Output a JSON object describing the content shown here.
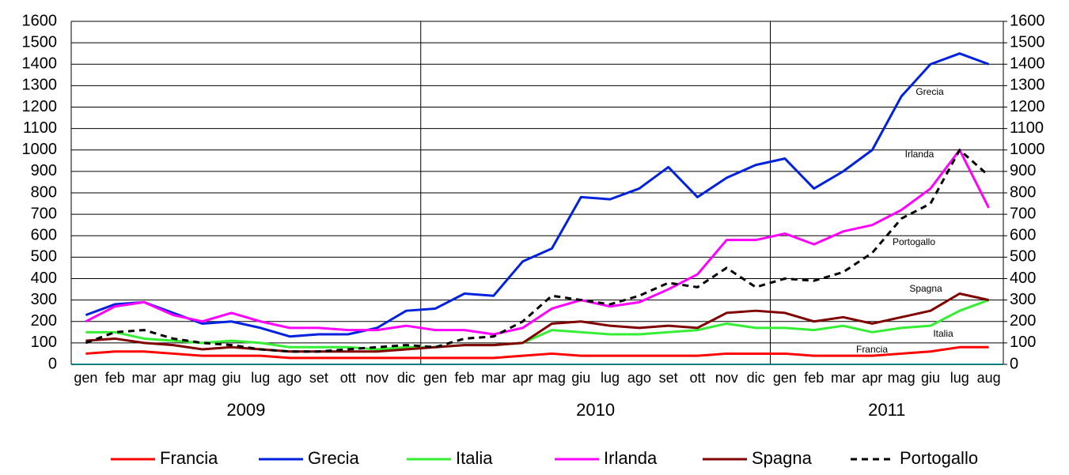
{
  "chart_data": {
    "type": "line",
    "categories": [
      "gen",
      "feb",
      "mar",
      "apr",
      "mag",
      "giu",
      "lug",
      "ago",
      "set",
      "ott",
      "nov",
      "dic",
      "gen",
      "feb",
      "mar",
      "apr",
      "mag",
      "giu",
      "lug",
      "ago",
      "set",
      "ott",
      "nov",
      "dic",
      "gen",
      "feb",
      "mar",
      "apr",
      "mag",
      "giu",
      "lug",
      "aug"
    ],
    "years": [
      "2009",
      "2010",
      "2011"
    ],
    "series": [
      {
        "name": "Francia",
        "color": "#ff0000",
        "values": [
          50,
          60,
          60,
          50,
          40,
          40,
          40,
          30,
          30,
          30,
          30,
          30,
          30,
          30,
          30,
          40,
          50,
          40,
          40,
          40,
          40,
          40,
          50,
          50,
          50,
          40,
          40,
          40,
          50,
          60,
          80,
          80
        ]
      },
      {
        "name": "Grecia",
        "color": "#0022dd",
        "values": [
          230,
          280,
          290,
          240,
          190,
          200,
          170,
          130,
          140,
          140,
          170,
          250,
          260,
          330,
          320,
          480,
          540,
          780,
          770,
          820,
          920,
          780,
          870,
          930,
          960,
          820,
          900,
          1000,
          1250,
          1400,
          1450,
          1400
        ]
      },
      {
        "name": "Italia",
        "color": "#33ee33",
        "values": [
          150,
          150,
          120,
          110,
          100,
          110,
          100,
          80,
          80,
          80,
          70,
          80,
          80,
          90,
          90,
          100,
          160,
          150,
          140,
          140,
          150,
          160,
          190,
          170,
          170,
          160,
          180,
          150,
          170,
          180,
          250,
          300
        ]
      },
      {
        "name": "Irlanda",
        "color": "#ff00ff",
        "values": [
          200,
          270,
          290,
          230,
          200,
          240,
          200,
          170,
          170,
          160,
          160,
          180,
          160,
          160,
          140,
          170,
          260,
          300,
          270,
          290,
          350,
          420,
          580,
          580,
          610,
          560,
          620,
          650,
          720,
          820,
          1000,
          730
        ]
      },
      {
        "name": "Spagna",
        "color": "#800000",
        "values": [
          110,
          120,
          100,
          90,
          70,
          80,
          70,
          60,
          60,
          60,
          60,
          70,
          80,
          90,
          90,
          100,
          190,
          200,
          180,
          170,
          180,
          170,
          240,
          250,
          240,
          200,
          220,
          190,
          220,
          250,
          330,
          300
        ]
      },
      {
        "name": "Portogallo",
        "color": "#000000",
        "dashed": true,
        "values": [
          100,
          150,
          160,
          120,
          100,
          90,
          70,
          60,
          60,
          70,
          80,
          90,
          80,
          120,
          130,
          200,
          320,
          300,
          280,
          320,
          380,
          360,
          450,
          360,
          400,
          390,
          430,
          520,
          680,
          750,
          1000,
          880
        ]
      }
    ],
    "annotations": [
      "Grecia",
      "Irlanda",
      "Portogallo",
      "Spagna",
      "Italia",
      "Francia"
    ],
    "ylim": [
      0,
      1600
    ],
    "yticks": [
      0,
      100,
      200,
      300,
      400,
      500,
      600,
      700,
      800,
      900,
      1000,
      1100,
      1200,
      1300,
      1400,
      1500,
      1600
    ],
    "y2lim": [
      0,
      1600
    ],
    "y2ticks": [
      0,
      100,
      200,
      300,
      400,
      500,
      600,
      700,
      800,
      900,
      1000,
      1100,
      1200,
      1300,
      1400,
      1500,
      1600
    ],
    "grid": true,
    "legend": "bottom"
  }
}
